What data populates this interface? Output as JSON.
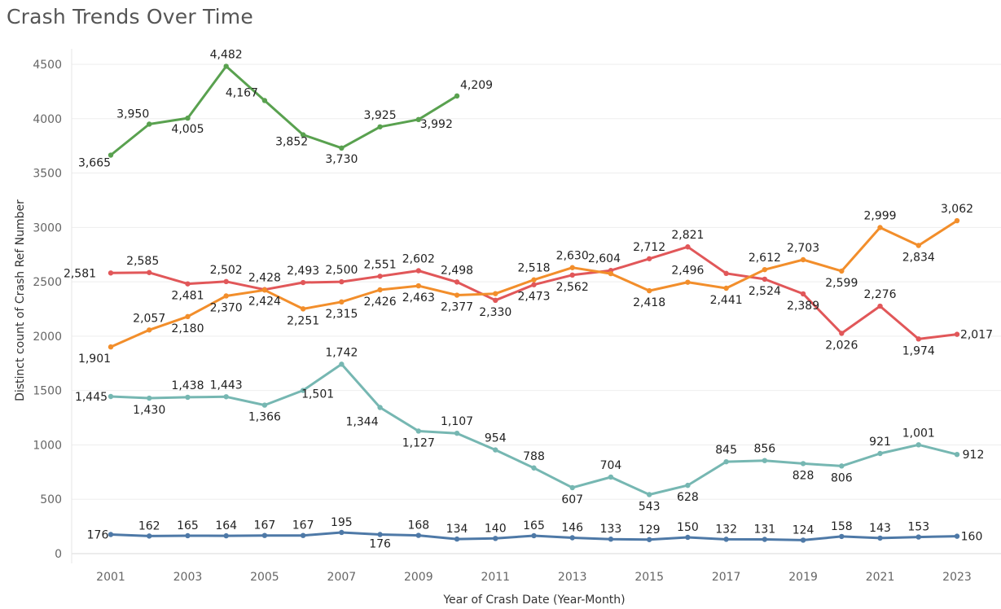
{
  "title": "Crash Trends Over Time",
  "chart_data": {
    "type": "line",
    "title": "Crash Trends Over Time",
    "xlabel": "Year of Crash Date (Year-Month)",
    "ylabel": "Distinct count of Crash Ref Number",
    "ylim": [
      0,
      4700
    ],
    "xlim": [
      2000.4,
      2024.2
    ],
    "yticks": [
      0,
      500,
      1000,
      1500,
      2000,
      2500,
      3000,
      3500,
      4000,
      4500
    ],
    "xticks": [
      2001,
      2003,
      2005,
      2007,
      2009,
      2011,
      2013,
      2015,
      2017,
      2019,
      2021,
      2023
    ],
    "grid": true,
    "legend": "none",
    "series": [
      {
        "color": "#59a14f",
        "x": [
          2001,
          2002,
          2003,
          2004,
          2005,
          2006,
          2007,
          2008,
          2009,
          2010
        ],
        "values": [
          3665,
          3950,
          4005,
          4482,
          4167,
          3852,
          3730,
          3925,
          3992,
          4209
        ],
        "labels": [
          "3,665",
          "3,950",
          "4,005",
          "4,482",
          "4,167",
          "3,852",
          "3,730",
          "3,925",
          "3,992",
          "4,209"
        ]
      },
      {
        "color": "#e15759",
        "x": [
          2001,
          2002,
          2003,
          2004,
          2005,
          2006,
          2007,
          2008,
          2009,
          2010,
          2011,
          2012,
          2013,
          2014,
          2015,
          2016,
          2017,
          2018,
          2019,
          2020,
          2021,
          2022,
          2023
        ],
        "values": [
          2581,
          2585,
          2481,
          2502,
          2428,
          2493,
          2500,
          2551,
          2602,
          2498,
          2330,
          2473,
          2562,
          2604,
          2712,
          2821,
          2577,
          2524,
          2389,
          2026,
          2276,
          1974,
          2017
        ],
        "labels": [
          "2,581",
          "2,585",
          "2,481",
          "2,502",
          "2,428",
          "2,493",
          "2,500",
          "2,551",
          "2,602",
          "2,498",
          "2,330",
          "2,473",
          "2,562",
          "2,604",
          "2,712",
          "2,821",
          "",
          "2,524",
          "2,389",
          "2,026",
          "2,276",
          "1,974",
          "2,017"
        ]
      },
      {
        "color": "#f28e2b",
        "x": [
          2001,
          2002,
          2003,
          2004,
          2005,
          2006,
          2007,
          2008,
          2009,
          2010,
          2011,
          2012,
          2013,
          2014,
          2015,
          2016,
          2017,
          2018,
          2019,
          2020,
          2021,
          2022,
          2023
        ],
        "values": [
          1901,
          2057,
          2180,
          2370,
          2424,
          2251,
          2315,
          2426,
          2463,
          2377,
          2391,
          2518,
          2630,
          2575,
          2418,
          2496,
          2441,
          2612,
          2703,
          2599,
          2999,
          2834,
          3062
        ],
        "labels": [
          "1,901",
          "2,057",
          "2,180",
          "2,370",
          "2,424",
          "2,251",
          "2,315",
          "2,426",
          "2,463",
          "2,377",
          "",
          "2,518",
          "2,630",
          "",
          "2,418",
          "2,496",
          "2,441",
          "2,612",
          "2,703",
          "2,599",
          "2,999",
          "2,834",
          "3,062"
        ]
      },
      {
        "color": "#76b7b2",
        "x": [
          2001,
          2002,
          2003,
          2004,
          2005,
          2006,
          2007,
          2008,
          2009,
          2010,
          2011,
          2012,
          2013,
          2014,
          2015,
          2016,
          2017,
          2018,
          2019,
          2020,
          2021,
          2022,
          2023
        ],
        "values": [
          1445,
          1430,
          1438,
          1443,
          1366,
          1501,
          1742,
          1344,
          1127,
          1107,
          954,
          788,
          607,
          704,
          543,
          628,
          845,
          856,
          828,
          806,
          921,
          1001,
          912
        ],
        "labels": [
          "1,445",
          "1,430",
          "1,438",
          "1,443",
          "1,366",
          "1,501",
          "1,742",
          "1,344",
          "1,127",
          "1,107",
          "954",
          "788",
          "607",
          "704",
          "543",
          "628",
          "845",
          "856",
          "828",
          "806",
          "921",
          "1,001",
          "912"
        ]
      },
      {
        "color": "#4e79a7",
        "x": [
          2001,
          2002,
          2003,
          2004,
          2005,
          2006,
          2007,
          2008,
          2009,
          2010,
          2011,
          2012,
          2013,
          2014,
          2015,
          2016,
          2017,
          2018,
          2019,
          2020,
          2021,
          2022,
          2023
        ],
        "values": [
          176,
          162,
          165,
          164,
          167,
          167,
          195,
          176,
          168,
          134,
          140,
          165,
          146,
          133,
          129,
          150,
          132,
          131,
          124,
          158,
          143,
          153,
          160
        ],
        "labels": [
          "176",
          "162",
          "165",
          "164",
          "167",
          "167",
          "195",
          "176",
          "168",
          "134",
          "140",
          "165",
          "146",
          "133",
          "129",
          "150",
          "132",
          "131",
          "124",
          "158",
          "143",
          "153",
          "160"
        ]
      }
    ]
  }
}
